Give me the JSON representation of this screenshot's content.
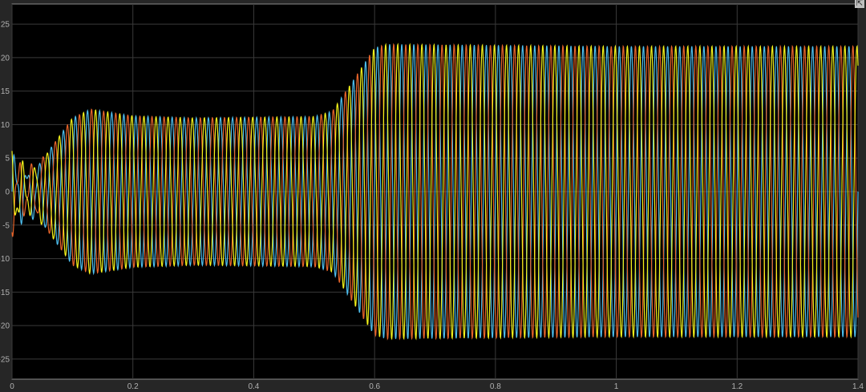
{
  "chart_data": {
    "type": "line",
    "title": "",
    "xlabel": "",
    "ylabel": "",
    "xlim": [
      0,
      1.4
    ],
    "ylim": [
      -28,
      28
    ],
    "xticks": [
      "0",
      "0.2",
      "0.4",
      "0.6",
      "0.8",
      "1",
      "1.2",
      "1.4"
    ],
    "xtick_values": [
      0,
      0.2,
      0.4,
      0.6,
      0.8,
      1.0,
      1.2,
      1.4
    ],
    "yticks": [
      "-25",
      "-20",
      "-15",
      "-10",
      "-5",
      "0",
      "5",
      "10",
      "15",
      "20",
      "25"
    ],
    "ytick_values": [
      -25,
      -20,
      -15,
      -10,
      -5,
      0,
      5,
      10,
      15,
      20,
      25
    ],
    "grid": true,
    "background": "#000000",
    "frequency_hz": 50,
    "envelope": {
      "t": [
        0,
        0.02,
        0.04,
        0.06,
        0.1,
        0.13,
        0.2,
        0.3,
        0.5,
        0.53,
        0.56,
        0.6,
        0.62,
        1.0,
        1.4
      ],
      "amplitude": [
        5,
        3,
        3.5,
        6,
        11,
        12.3,
        11.3,
        11,
        11.2,
        12,
        16,
        21.5,
        22,
        21.7,
        21.7
      ]
    },
    "series": [
      {
        "color": "#4DBEEE",
        "phase_deg": 0
      },
      {
        "color": "#E8642A",
        "phase_deg": -120
      },
      {
        "color": "#F2F21A",
        "phase_deg": 120
      }
    ]
  },
  "corner_button": {
    "icon": "expand-icon",
    "label": "⇱"
  }
}
